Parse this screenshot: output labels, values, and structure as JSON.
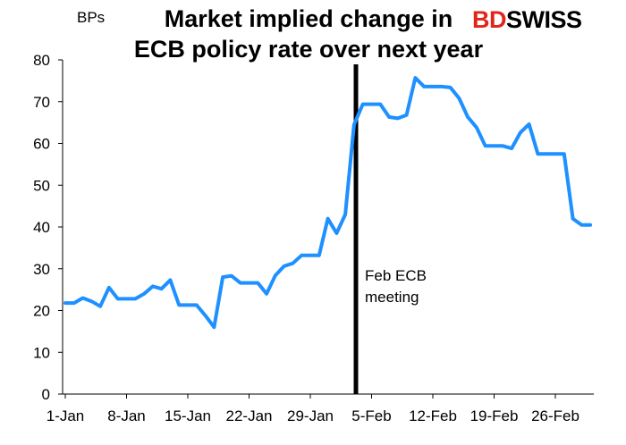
{
  "chart_data": {
    "type": "line",
    "title_line1": "Market implied change in",
    "title_line2": "ECB policy rate over next year",
    "ylabel": "BPs",
    "ylim": [
      0,
      80
    ],
    "yticks": [
      0,
      10,
      20,
      30,
      40,
      50,
      60,
      70,
      80
    ],
    "xlabels": [
      "1-Jan",
      "8-Jan",
      "15-Jan",
      "22-Jan",
      "29-Jan",
      "5-Feb",
      "12-Feb",
      "19-Feb",
      "26-Feb"
    ],
    "grid": false,
    "annotation": {
      "text_line1": "Feb ECB",
      "text_line2": "meeting"
    },
    "series": [
      {
        "color": "#1e90ff",
        "values": [
          21.8,
          21.8,
          23.0,
          22.2,
          21.0,
          25.5,
          22.8,
          22.8,
          22.8,
          24.0,
          25.8,
          25.2,
          27.3,
          21.3,
          21.3,
          21.3,
          18.8,
          16.0,
          28.0,
          28.3,
          26.6,
          26.6,
          26.6,
          24.0,
          28.4,
          30.6,
          31.3,
          33.2,
          33.2,
          33.2,
          42.0,
          38.5,
          43.0,
          64.5,
          69.4,
          69.4,
          69.4,
          66.3,
          66.0,
          66.8,
          75.7,
          73.6,
          73.6,
          73.6,
          73.4,
          70.8,
          66.3,
          63.8,
          59.4,
          59.4,
          59.4,
          58.8,
          62.6,
          64.6,
          57.5,
          57.5,
          57.5,
          57.5,
          42.0,
          40.5,
          40.5
        ]
      }
    ]
  },
  "logo": {
    "part1": "BD",
    "part2": "SWISS"
  }
}
